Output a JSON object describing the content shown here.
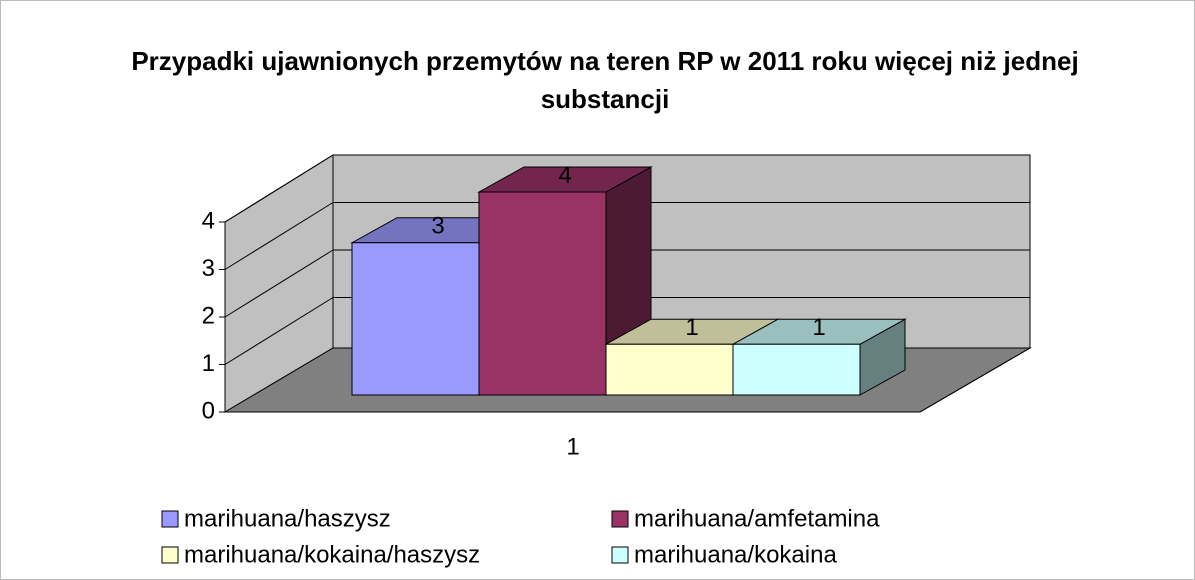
{
  "chart_data": {
    "type": "bar3d",
    "title": "Przypadki ujawnionych przemytów na teren RP w 2011 roku więcej niż jednej substancji",
    "categories": [
      "1"
    ],
    "series": [
      {
        "name": "marihuana/haszysz",
        "color": "#9999ff",
        "values": [
          3
        ]
      },
      {
        "name": "marihuana/amfetamina",
        "color": "#993366",
        "values": [
          4
        ]
      },
      {
        "name": "marihuana/kokaina/haszysz",
        "color": "#ffffcc",
        "values": [
          1
        ]
      },
      {
        "name": "marihuana/kokaina",
        "color": "#ccffff",
        "values": [
          1
        ]
      }
    ],
    "ylim": [
      0,
      4
    ],
    "yticks": [
      0,
      1,
      2,
      3,
      4
    ],
    "grid": true,
    "legend": "bottom"
  }
}
